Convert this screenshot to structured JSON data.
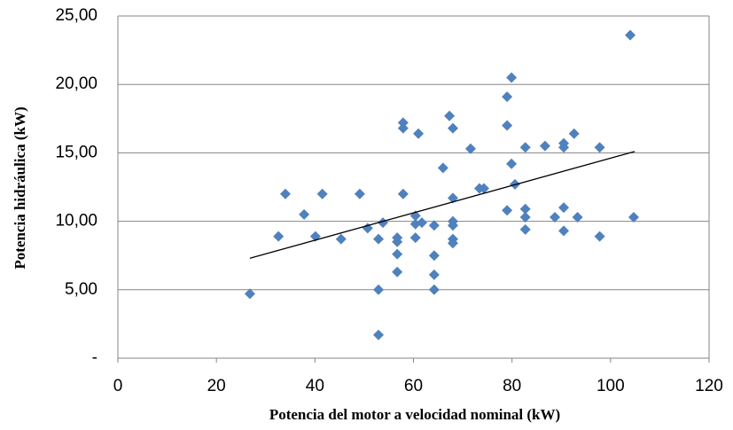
{
  "chart_data": {
    "type": "scatter",
    "x_label": "Potencia  del motor  a velocidad  nominal  (kW)",
    "y_label": "Potencia  hidráulica  (kW)",
    "color": "#4f81bd",
    "x": [
      26.8,
      32.6,
      34.0,
      37.8,
      40.1,
      41.5,
      45.3,
      49.1,
      50.7,
      52.9,
      53.8,
      52.9,
      52.9,
      56.7,
      56.7,
      56.7,
      56.7,
      57.9,
      57.9,
      57.9,
      60.4,
      60.4,
      60.4,
      61.0,
      61.7,
      64.2,
      64.2,
      64.2,
      64.2,
      66.0,
      67.3,
      68.0,
      68.0,
      68.0,
      68.0,
      68.0,
      68.0,
      71.6,
      73.4,
      74.3,
      79.0,
      79.0,
      79.0,
      79.9,
      79.9,
      80.6,
      82.7,
      82.7,
      82.7,
      82.7,
      86.7,
      88.7,
      90.5,
      90.5,
      90.5,
      90.5,
      92.6,
      93.3,
      97.8,
      97.8,
      104.0,
      104.7
    ],
    "values": [
      4.7,
      8.9,
      12.0,
      10.5,
      8.9,
      12.0,
      8.7,
      12.0,
      9.5,
      8.7,
      9.9,
      5.0,
      1.7,
      8.8,
      8.5,
      7.6,
      6.3,
      17.2,
      16.8,
      12.0,
      10.4,
      9.8,
      8.8,
      16.4,
      9.9,
      9.7,
      7.5,
      6.1,
      5.0,
      13.9,
      17.7,
      16.8,
      11.7,
      10.0,
      9.7,
      8.7,
      8.4,
      15.3,
      12.4,
      12.4,
      19.1,
      17.0,
      10.8,
      20.5,
      14.2,
      12.7,
      15.4,
      10.9,
      10.3,
      9.4,
      15.5,
      10.3,
      15.7,
      15.4,
      11.0,
      9.3,
      16.4,
      10.3,
      15.4,
      8.9,
      23.6,
      10.3
    ],
    "trendline": {
      "x": [
        26.8,
        104.9
      ],
      "values": [
        7.3,
        15.1
      ],
      "color": "#000000"
    },
    "xlim": [
      0,
      120
    ],
    "xticks": [
      0,
      20,
      40,
      60,
      80,
      100,
      120
    ],
    "ylim": [
      0,
      25
    ],
    "yticks": [
      {
        "value": 0,
        "label": "-"
      },
      {
        "value": 5,
        "label": "5,00"
      },
      {
        "value": 10,
        "label": "10,00"
      },
      {
        "value": 15,
        "label": "15,00"
      },
      {
        "value": 20,
        "label": "20,00"
      },
      {
        "value": 25,
        "label": "25,00"
      }
    ],
    "grid": true
  }
}
